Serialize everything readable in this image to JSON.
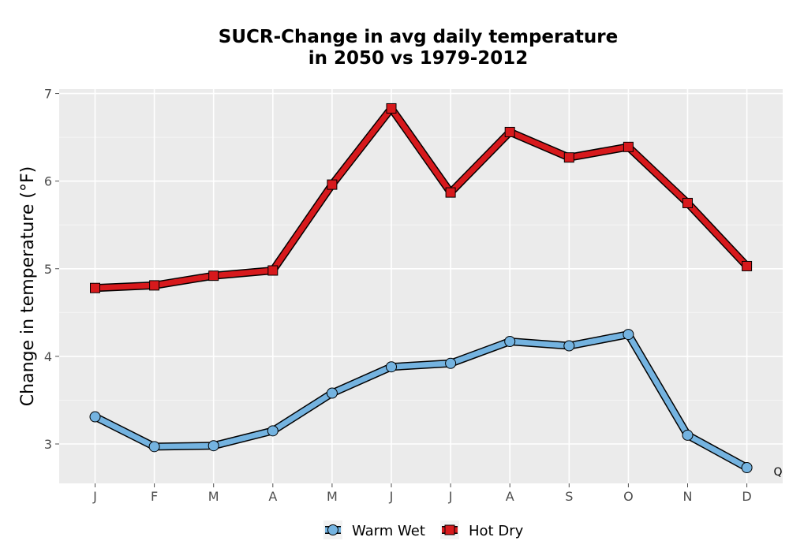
{
  "chart_data": {
    "type": "line",
    "title_line1": "SUCR-Change in avg daily temperature",
    "title_line2": "in 2050 vs 1979-2012",
    "xlabel": "",
    "ylabel": "Change in temperature (°F)",
    "categories": [
      "J",
      "F",
      "M",
      "A",
      "M",
      "J",
      "J",
      "A",
      "S",
      "O",
      "N",
      "D"
    ],
    "ylim": [
      2.55,
      7.05
    ],
    "yticks": [
      3,
      4,
      5,
      6,
      7
    ],
    "ytick_labels": [
      "3",
      "4",
      "5",
      "6",
      "7"
    ],
    "grid": true,
    "legend_position": "bottom",
    "series": [
      {
        "name": "Warm Wet",
        "marker": "circle",
        "color": "#74b3e0",
        "values": [
          3.31,
          2.97,
          2.98,
          3.15,
          3.58,
          3.88,
          3.92,
          4.17,
          4.12,
          4.25,
          3.1,
          2.73
        ]
      },
      {
        "name": "Hot Dry",
        "marker": "square",
        "color": "#d7191c",
        "values": [
          4.78,
          4.81,
          4.92,
          4.98,
          5.96,
          6.83,
          5.87,
          6.56,
          6.27,
          6.39,
          5.75,
          5.03
        ]
      }
    ],
    "annotation": "Q"
  }
}
